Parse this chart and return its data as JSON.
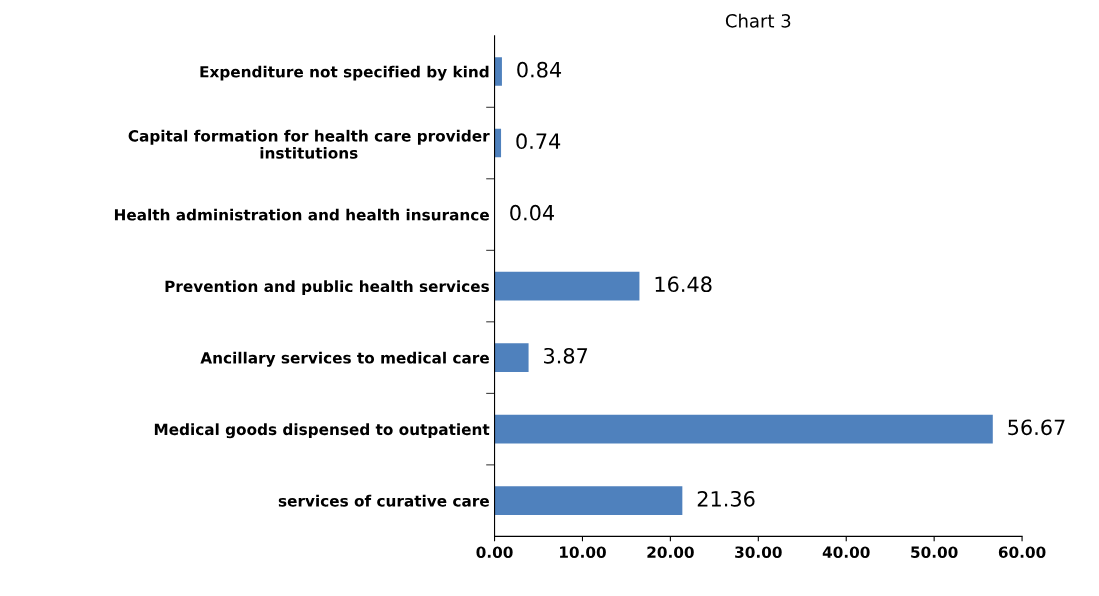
{
  "chart_data": {
    "type": "bar",
    "orientation": "horizontal",
    "title": "Chart 3",
    "categories": [
      "Expenditure not specified by kind",
      "Capital formation for health care provider institutions",
      "Health administration and health insurance",
      "Prevention and public health services",
      "Ancillary services to medical care",
      "Medical goods dispensed to outpatient",
      "services of curative care"
    ],
    "values": [
      0.84,
      0.74,
      0.04,
      16.48,
      3.87,
      56.67,
      21.36
    ],
    "color": "#4f81bd",
    "xlim": [
      0,
      60
    ],
    "xticks": [
      {
        "value": 0,
        "label": "0.00"
      },
      {
        "value": 10,
        "label": "10.00"
      },
      {
        "value": 20,
        "label": "20.00"
      },
      {
        "value": 30,
        "label": "30.00"
      },
      {
        "value": 40,
        "label": "40.00"
      },
      {
        "value": 50,
        "label": "50.00"
      },
      {
        "value": 60,
        "label": "60.00"
      }
    ],
    "data_labels": true,
    "grid": false
  }
}
